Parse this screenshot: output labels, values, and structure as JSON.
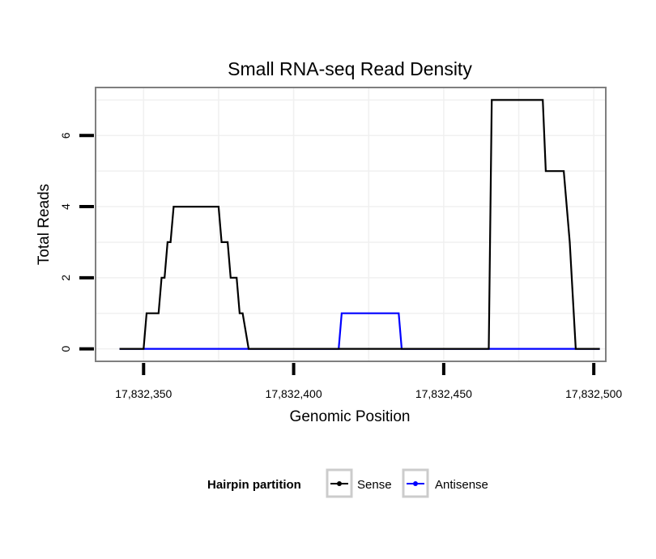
{
  "chart_data": {
    "type": "line",
    "title": "Small RNA-seq Read Density",
    "xlabel": "Genomic Position",
    "ylabel": "Total Reads",
    "xlim": [
      17832334,
      17832504
    ],
    "ylim": [
      -0.35,
      7.35
    ],
    "x_ticks": [
      17832350,
      17832400,
      17832450,
      17832500
    ],
    "x_tick_labels": [
      "17,832,350",
      "17,832,400",
      "17,832,450",
      "17,832,500"
    ],
    "y_ticks": [
      0,
      2,
      4,
      6
    ],
    "y_tick_labels": [
      "0",
      "2",
      "4",
      "6"
    ],
    "grid": true,
    "legend": {
      "title": "Hairpin partition",
      "position": "bottom",
      "entries": [
        "Sense",
        "Antisense"
      ]
    },
    "series": [
      {
        "name": "Sense",
        "color": "#000000",
        "x": [
          17832342,
          17832350,
          17832351,
          17832355,
          17832356,
          17832357,
          17832358,
          17832359,
          17832360,
          17832375,
          17832376,
          17832378,
          17832379,
          17832381,
          17832382,
          17832383,
          17832385,
          17832465,
          17832466,
          17832483,
          17832484,
          17832490,
          17832492,
          17832494,
          17832502
        ],
        "values": [
          0,
          0,
          1,
          1,
          2,
          2,
          3,
          3,
          4,
          4,
          3,
          3,
          2,
          2,
          1,
          1,
          0,
          0,
          7,
          7,
          5,
          5,
          3,
          0,
          0
        ]
      },
      {
        "name": "Antisense",
        "color": "#0000ff",
        "x": [
          17832342,
          17832415,
          17832416,
          17832435,
          17832436,
          17832502
        ],
        "values": [
          0,
          0,
          1,
          1,
          0,
          0
        ]
      }
    ]
  }
}
